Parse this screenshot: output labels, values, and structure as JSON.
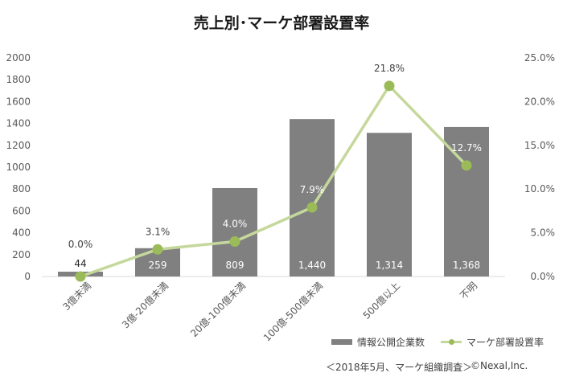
{
  "chart_data": {
    "type": "bar",
    "title": "売上別･マーケ部署設置率",
    "categories": [
      "3億未満",
      "3億-20億未満",
      "20億-100億未満",
      "100億-500億未満",
      "500億以上",
      "不明"
    ],
    "series": [
      {
        "name": "情報公開企業数",
        "type": "bar",
        "axis": "left",
        "values": [
          44,
          259,
          809,
          1440,
          1314,
          1368
        ],
        "labels": [
          "44",
          "259",
          "809",
          "1,440",
          "1,314",
          "1,368"
        ],
        "color": "#808080"
      },
      {
        "name": "マーケ部署設置率",
        "type": "line",
        "axis": "right",
        "values": [
          0.0,
          3.1,
          4.0,
          7.9,
          21.8,
          12.7
        ],
        "labels": [
          "0.0%",
          "3.1%",
          "4.0%",
          "7.9%",
          "21.8%",
          "12.7%"
        ],
        "color": "#c5d89c",
        "marker_color": "#9bbb59"
      }
    ],
    "y_left": {
      "min": 0,
      "max": 2000,
      "ticks": [
        "0",
        "200",
        "400",
        "600",
        "800",
        "1000",
        "1200",
        "1400",
        "1600",
        "1800",
        "2000"
      ]
    },
    "y_right": {
      "min": 0,
      "max": 25,
      "ticks": [
        "0.0%",
        "5.0%",
        "10.0%",
        "15.0%",
        "20.0%",
        "25.0%"
      ]
    },
    "grid": false,
    "legend_position": "bottom-right"
  },
  "footer": {
    "source": "＜2018年5月、マーケ組織調査＞",
    "copyright": "©Nexal,Inc."
  }
}
